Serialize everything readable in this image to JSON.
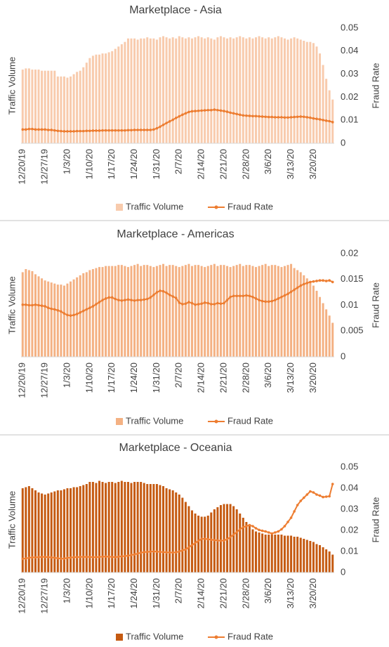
{
  "chart_data": [
    {
      "type": "bar-line",
      "title": "Marketplace - Asia",
      "y_label": "Traffic Volume",
      "y2_label": "Fraud Rate",
      "categories": [
        "12/20/19",
        null,
        null,
        null,
        null,
        null,
        null,
        "12/27/19",
        null,
        null,
        null,
        null,
        null,
        null,
        "1/3/20",
        null,
        null,
        null,
        null,
        null,
        null,
        "1/10/20",
        null,
        null,
        null,
        null,
        null,
        null,
        "1/17/20",
        null,
        null,
        null,
        null,
        null,
        null,
        "1/24/20",
        null,
        null,
        null,
        null,
        null,
        null,
        "1/31/20",
        null,
        null,
        null,
        null,
        null,
        null,
        "2/7/20",
        null,
        null,
        null,
        null,
        null,
        null,
        "2/14/20",
        null,
        null,
        null,
        null,
        null,
        null,
        "2/21/20",
        null,
        null,
        null,
        null,
        null,
        null,
        "2/28/20",
        null,
        null,
        null,
        null,
        null,
        null,
        "3/6/20",
        null,
        null,
        null,
        null,
        null,
        null,
        "3/13/20",
        null,
        null,
        null,
        null,
        null,
        null,
        "3/20/20",
        null,
        null,
        null,
        null,
        null,
        null
      ],
      "ylim": [
        0,
        100
      ],
      "y2lim": [
        0,
        0.05
      ],
      "y2ticks": [
        0,
        0.01,
        0.02,
        0.03,
        0.04,
        0.05
      ],
      "series": [
        {
          "name": "Traffic Volume",
          "color": "#f8cbad",
          "values": [
            64,
            65,
            65,
            64,
            64,
            64,
            63,
            63,
            63,
            63,
            63,
            58,
            58,
            58,
            57,
            58,
            60,
            62,
            63,
            66,
            70,
            74,
            76,
            77,
            77,
            78,
            78,
            79,
            80,
            82,
            84,
            86,
            88,
            91,
            91,
            91,
            90,
            91,
            91,
            92,
            91,
            91,
            90,
            92,
            93,
            92,
            91,
            92,
            91,
            93,
            92,
            91,
            92,
            91,
            92,
            93,
            92,
            91,
            92,
            91,
            90,
            92,
            93,
            92,
            91,
            92,
            91,
            92,
            93,
            92,
            91,
            92,
            91,
            92,
            93,
            92,
            91,
            92,
            91,
            92,
            93,
            92,
            91,
            90,
            91,
            92,
            91,
            90,
            89,
            88,
            88,
            87,
            84,
            78,
            68,
            56,
            46,
            38
          ]
        },
        {
          "name": "Fraud Rate",
          "color": "#ed7d31",
          "axis": "y2",
          "values": [
            0.006,
            0.006,
            0.0062,
            0.0062,
            0.006,
            0.006,
            0.006,
            0.006,
            0.0058,
            0.0058,
            0.0056,
            0.0054,
            0.0053,
            0.0052,
            0.0052,
            0.0052,
            0.0052,
            0.0053,
            0.0053,
            0.0053,
            0.0054,
            0.0054,
            0.0055,
            0.0055,
            0.0055,
            0.0056,
            0.0056,
            0.0056,
            0.0056,
            0.0056,
            0.0056,
            0.0056,
            0.0056,
            0.0057,
            0.0057,
            0.0058,
            0.0058,
            0.0058,
            0.0058,
            0.0058,
            0.0058,
            0.006,
            0.0065,
            0.0072,
            0.008,
            0.0088,
            0.0095,
            0.0102,
            0.011,
            0.0117,
            0.0124,
            0.013,
            0.0136,
            0.0139,
            0.014,
            0.0141,
            0.0142,
            0.0143,
            0.0144,
            0.0144,
            0.0146,
            0.0144,
            0.0142,
            0.014,
            0.0137,
            0.0133,
            0.013,
            0.0127,
            0.0124,
            0.0121,
            0.012,
            0.0119,
            0.0118,
            0.0118,
            0.0117,
            0.0116,
            0.0115,
            0.0114,
            0.0114,
            0.0113,
            0.0113,
            0.0113,
            0.0112,
            0.0112,
            0.0113,
            0.0114,
            0.0115,
            0.0116,
            0.0115,
            0.0113,
            0.0111,
            0.0108,
            0.0106,
            0.0104,
            0.0101,
            0.0098,
            0.0096,
            0.0092
          ]
        }
      ]
    },
    {
      "type": "bar-line",
      "title": "Marketplace - Americas",
      "y_label": "Traffic Volume",
      "y2_label": "Fraud Rate",
      "categories": [
        "12/20/19",
        null,
        null,
        null,
        null,
        null,
        null,
        "12/27/19",
        null,
        null,
        null,
        null,
        null,
        null,
        "1/3/20",
        null,
        null,
        null,
        null,
        null,
        null,
        "1/10/20",
        null,
        null,
        null,
        null,
        null,
        null,
        "1/17/20",
        null,
        null,
        null,
        null,
        null,
        null,
        "1/24/20",
        null,
        null,
        null,
        null,
        null,
        null,
        "1/31/20",
        null,
        null,
        null,
        null,
        null,
        null,
        "2/7/20",
        null,
        null,
        null,
        null,
        null,
        null,
        "2/14/20",
        null,
        null,
        null,
        null,
        null,
        null,
        "2/21/20",
        null,
        null,
        null,
        null,
        null,
        null,
        "2/28/20",
        null,
        null,
        null,
        null,
        null,
        null,
        "3/6/20",
        null,
        null,
        null,
        null,
        null,
        null,
        "3/13/20",
        null,
        null,
        null,
        null,
        null,
        null,
        "3/20/20",
        null,
        null,
        null,
        null,
        null,
        null
      ],
      "ylim": [
        0,
        100
      ],
      "y2lim": [
        0,
        0.02
      ],
      "y2ticks": [
        0,
        0.005,
        0.01,
        0.015,
        0.02
      ],
      "series": [
        {
          "name": "Traffic Volume",
          "color": "#f4b183",
          "values": [
            82,
            85,
            84,
            83,
            80,
            78,
            76,
            74,
            73,
            72,
            71,
            70,
            70,
            69,
            71,
            73,
            75,
            77,
            79,
            81,
            82,
            84,
            85,
            86,
            87,
            87,
            88,
            88,
            88,
            88,
            89,
            89,
            88,
            87,
            88,
            89,
            90,
            88,
            89,
            89,
            88,
            87,
            88,
            89,
            90,
            88,
            89,
            89,
            88,
            87,
            88,
            89,
            90,
            88,
            89,
            89,
            88,
            87,
            88,
            89,
            90,
            88,
            89,
            89,
            88,
            87,
            88,
            89,
            90,
            88,
            89,
            89,
            88,
            87,
            88,
            89,
            90,
            88,
            89,
            89,
            88,
            87,
            88,
            89,
            90,
            86,
            84,
            82,
            79,
            76,
            73,
            69,
            64,
            58,
            52,
            46,
            40,
            33
          ]
        },
        {
          "name": "Fraud Rate",
          "color": "#ed7d31",
          "axis": "y2",
          "values": [
            0.0101,
            0.0101,
            0.01,
            0.01,
            0.0101,
            0.01,
            0.0099,
            0.0098,
            0.0095,
            0.0093,
            0.0092,
            0.009,
            0.0088,
            0.0084,
            0.0081,
            0.008,
            0.0081,
            0.0083,
            0.0086,
            0.0089,
            0.0092,
            0.0095,
            0.0098,
            0.0102,
            0.0106,
            0.011,
            0.0113,
            0.0115,
            0.0115,
            0.0112,
            0.011,
            0.0109,
            0.011,
            0.0111,
            0.011,
            0.0109,
            0.011,
            0.011,
            0.0111,
            0.0112,
            0.0115,
            0.012,
            0.0125,
            0.0128,
            0.0127,
            0.0124,
            0.012,
            0.0117,
            0.0114,
            0.0105,
            0.0102,
            0.0103,
            0.0106,
            0.0104,
            0.0101,
            0.0102,
            0.0103,
            0.0105,
            0.0104,
            0.0102,
            0.0102,
            0.0104,
            0.0103,
            0.0104,
            0.011,
            0.0116,
            0.0118,
            0.0118,
            0.0118,
            0.0118,
            0.0119,
            0.0118,
            0.0116,
            0.0113,
            0.011,
            0.0108,
            0.0107,
            0.0107,
            0.0108,
            0.011,
            0.0113,
            0.0116,
            0.0119,
            0.0122,
            0.0126,
            0.013,
            0.0134,
            0.0138,
            0.0141,
            0.0143,
            0.0145,
            0.0146,
            0.0147,
            0.0148,
            0.0148,
            0.0147,
            0.0148,
            0.0145
          ]
        }
      ]
    },
    {
      "type": "bar-line",
      "title": "Marketplace - Oceania",
      "y_label": "Traffic Volume",
      "y2_label": "Fraud Rate",
      "categories": [
        "12/20/19",
        null,
        null,
        null,
        null,
        null,
        null,
        "12/27/19",
        null,
        null,
        null,
        null,
        null,
        null,
        "1/3/20",
        null,
        null,
        null,
        null,
        null,
        null,
        "1/10/20",
        null,
        null,
        null,
        null,
        null,
        null,
        "1/17/20",
        null,
        null,
        null,
        null,
        null,
        null,
        "1/24/20",
        null,
        null,
        null,
        null,
        null,
        null,
        "1/31/20",
        null,
        null,
        null,
        null,
        null,
        null,
        "2/7/20",
        null,
        null,
        null,
        null,
        null,
        null,
        "2/14/20",
        null,
        null,
        null,
        null,
        null,
        null,
        "2/21/20",
        null,
        null,
        null,
        null,
        null,
        null,
        "2/28/20",
        null,
        null,
        null,
        null,
        null,
        null,
        "3/6/20",
        null,
        null,
        null,
        null,
        null,
        null,
        "3/13/20",
        null,
        null,
        null,
        null,
        null,
        null,
        "3/20/20",
        null,
        null,
        null,
        null,
        null,
        null
      ],
      "ylim": [
        0,
        100
      ],
      "y2lim": [
        0,
        0.05
      ],
      "y2ticks": [
        0,
        0.01,
        0.02,
        0.03,
        0.04,
        0.05
      ],
      "series": [
        {
          "name": "Traffic Volume",
          "color": "#c55a11",
          "values": [
            80,
            81,
            82,
            80,
            78,
            76,
            75,
            74,
            75,
            76,
            77,
            78,
            78,
            79,
            80,
            80,
            81,
            81,
            82,
            83,
            84,
            86,
            86,
            85,
            87,
            86,
            85,
            86,
            86,
            85,
            86,
            87,
            86,
            86,
            85,
            86,
            86,
            86,
            85,
            84,
            84,
            84,
            84,
            83,
            82,
            80,
            79,
            78,
            76,
            74,
            71,
            67,
            63,
            59,
            56,
            54,
            53,
            53,
            54,
            57,
            60,
            62,
            64,
            65,
            65,
            65,
            63,
            60,
            56,
            52,
            48,
            44,
            41,
            39,
            38,
            37,
            36,
            36,
            36,
            36,
            36,
            36,
            35,
            35,
            35,
            34,
            34,
            33,
            32,
            31,
            30,
            29,
            27,
            26,
            24,
            22,
            20,
            17
          ]
        },
        {
          "name": "Fraud Rate",
          "color": "#ed7d31",
          "axis": "y2",
          "values": [
            0.0065,
            0.0067,
            0.007,
            0.0072,
            0.0072,
            0.0073,
            0.0074,
            0.0074,
            0.0073,
            0.0072,
            0.007,
            0.0068,
            0.0066,
            0.0066,
            0.007,
            0.0071,
            0.0073,
            0.0073,
            0.0074,
            0.0074,
            0.0074,
            0.0074,
            0.0073,
            0.0073,
            0.0074,
            0.0075,
            0.0076,
            0.0075,
            0.0074,
            0.0073,
            0.0075,
            0.0077,
            0.0078,
            0.008,
            0.0083,
            0.0086,
            0.009,
            0.0094,
            0.0097,
            0.0098,
            0.0099,
            0.01,
            0.0099,
            0.0098,
            0.0097,
            0.0096,
            0.0095,
            0.0095,
            0.0096,
            0.01,
            0.0105,
            0.011,
            0.012,
            0.013,
            0.014,
            0.015,
            0.016,
            0.016,
            0.0158,
            0.0156,
            0.0154,
            0.0152,
            0.0151,
            0.0152,
            0.0158,
            0.0168,
            0.018,
            0.0192,
            0.0205,
            0.0215,
            0.022,
            0.0225,
            0.022,
            0.021,
            0.0202,
            0.0198,
            0.0195,
            0.019,
            0.0185,
            0.019,
            0.0195,
            0.0205,
            0.022,
            0.024,
            0.026,
            0.029,
            0.032,
            0.034,
            0.0355,
            0.037,
            0.0385,
            0.038,
            0.037,
            0.0365,
            0.0358,
            0.036,
            0.0362,
            0.042
          ]
        }
      ]
    }
  ]
}
